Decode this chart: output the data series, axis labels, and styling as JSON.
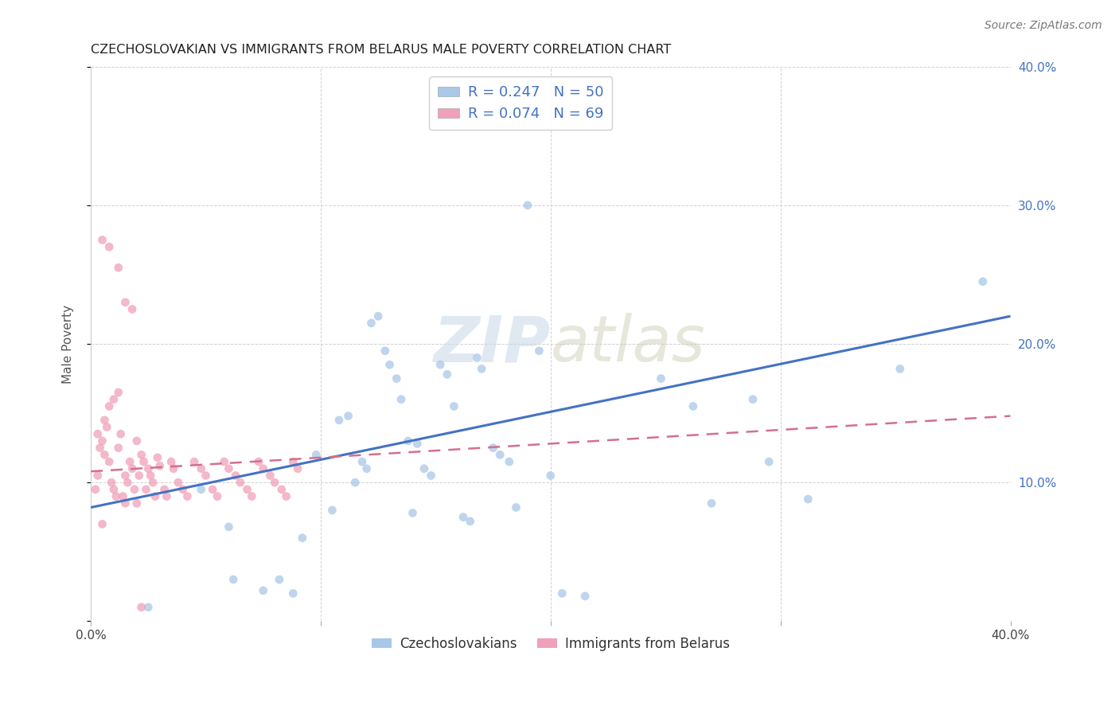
{
  "title": "CZECHOSLOVAKIAN VS IMMIGRANTS FROM BELARUS MALE POVERTY CORRELATION CHART",
  "source": "Source: ZipAtlas.com",
  "ylabel": "Male Poverty",
  "xlim": [
    0.0,
    0.4
  ],
  "ylim": [
    0.0,
    0.4
  ],
  "xticks": [
    0.0,
    0.1,
    0.2,
    0.3,
    0.4
  ],
  "yticks": [
    0.0,
    0.1,
    0.2,
    0.3,
    0.4
  ],
  "xticklabels": [
    "0.0%",
    "",
    "",
    "",
    "40.0%"
  ],
  "yticklabels_right": [
    "",
    "10.0%",
    "20.0%",
    "30.0%",
    "40.0%"
  ],
  "color_czech": "#a8c8e8",
  "color_belarus": "#f0a0b8",
  "line_color_czech": "#4472c4",
  "line_color_belarus": "#d4708a",
  "legend_label1": "R = 0.247   N = 50",
  "legend_label2": "R = 0.074   N = 69",
  "legend_label_bottom1": "Czechoslovakians",
  "legend_label_bottom2": "Immigrants from Belarus",
  "background_color": "#ffffff",
  "grid_color": "#cccccc",
  "title_color": "#222222",
  "axis_label_color": "#555555",
  "scatter_size": 60,
  "czech_x": [
    0.025,
    0.048,
    0.06,
    0.062,
    0.075,
    0.082,
    0.088,
    0.092,
    0.098,
    0.105,
    0.108,
    0.112,
    0.115,
    0.118,
    0.12,
    0.122,
    0.125,
    0.128,
    0.13,
    0.133,
    0.135,
    0.138,
    0.14,
    0.142,
    0.145,
    0.148,
    0.152,
    0.155,
    0.158,
    0.162,
    0.165,
    0.168,
    0.17,
    0.175,
    0.178,
    0.182,
    0.185,
    0.19,
    0.195,
    0.2,
    0.205,
    0.215,
    0.248,
    0.262,
    0.27,
    0.288,
    0.295,
    0.312,
    0.352,
    0.388
  ],
  "czech_y": [
    0.01,
    0.095,
    0.068,
    0.03,
    0.022,
    0.03,
    0.02,
    0.06,
    0.12,
    0.08,
    0.145,
    0.148,
    0.1,
    0.115,
    0.11,
    0.215,
    0.22,
    0.195,
    0.185,
    0.175,
    0.16,
    0.13,
    0.078,
    0.128,
    0.11,
    0.105,
    0.185,
    0.178,
    0.155,
    0.075,
    0.072,
    0.19,
    0.182,
    0.125,
    0.12,
    0.115,
    0.082,
    0.3,
    0.195,
    0.105,
    0.02,
    0.018,
    0.175,
    0.155,
    0.085,
    0.16,
    0.115,
    0.088,
    0.182,
    0.245
  ],
  "belarus_x": [
    0.002,
    0.003,
    0.003,
    0.004,
    0.005,
    0.005,
    0.006,
    0.006,
    0.007,
    0.008,
    0.008,
    0.009,
    0.01,
    0.01,
    0.011,
    0.012,
    0.012,
    0.013,
    0.014,
    0.015,
    0.015,
    0.016,
    0.017,
    0.018,
    0.019,
    0.02,
    0.02,
    0.021,
    0.022,
    0.023,
    0.024,
    0.025,
    0.026,
    0.027,
    0.028,
    0.029,
    0.03,
    0.032,
    0.033,
    0.035,
    0.036,
    0.038,
    0.04,
    0.042,
    0.045,
    0.048,
    0.05,
    0.053,
    0.055,
    0.058,
    0.06,
    0.063,
    0.065,
    0.068,
    0.07,
    0.073,
    0.075,
    0.078,
    0.08,
    0.083,
    0.085,
    0.088,
    0.09,
    0.005,
    0.008,
    0.012,
    0.015,
    0.018,
    0.022
  ],
  "belarus_y": [
    0.095,
    0.105,
    0.135,
    0.125,
    0.07,
    0.13,
    0.12,
    0.145,
    0.14,
    0.115,
    0.155,
    0.1,
    0.095,
    0.16,
    0.09,
    0.125,
    0.165,
    0.135,
    0.09,
    0.085,
    0.105,
    0.1,
    0.115,
    0.11,
    0.095,
    0.085,
    0.13,
    0.105,
    0.12,
    0.115,
    0.095,
    0.11,
    0.105,
    0.1,
    0.09,
    0.118,
    0.112,
    0.095,
    0.09,
    0.115,
    0.11,
    0.1,
    0.095,
    0.09,
    0.115,
    0.11,
    0.105,
    0.095,
    0.09,
    0.115,
    0.11,
    0.105,
    0.1,
    0.095,
    0.09,
    0.115,
    0.11,
    0.105,
    0.1,
    0.095,
    0.09,
    0.115,
    0.11,
    0.275,
    0.27,
    0.255,
    0.23,
    0.225,
    0.01
  ],
  "czech_line_x": [
    0.0,
    0.4
  ],
  "czech_line_y": [
    0.082,
    0.22
  ],
  "belarus_line_x": [
    0.0,
    0.4
  ],
  "belarus_line_y": [
    0.108,
    0.148
  ]
}
